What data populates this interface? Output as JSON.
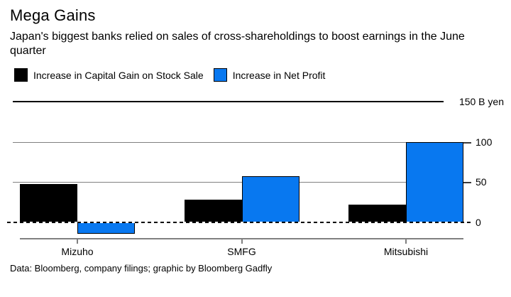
{
  "chart_data": {
    "type": "bar",
    "title": "Mega Gains",
    "subtitle": "Japan's biggest banks relied on sales of cross-shareholdings to boost earnings in the June quarter",
    "categories": [
      "Mizuho",
      "SMFG",
      "Mitsubishi"
    ],
    "series": [
      {
        "name": "Increase in Capital Gain on Stock Sale",
        "color": "#000000",
        "values": [
          48,
          28,
          22
        ]
      },
      {
        "name": "Increase in Net Profit",
        "color": "#0878f0",
        "values": [
          -14,
          57,
          100
        ]
      }
    ],
    "unit": "B yen",
    "ylim": [
      -20,
      150
    ],
    "yticks": [
      {
        "value": 0,
        "label": "0",
        "style": "zero-dashed"
      },
      {
        "value": 50,
        "label": "50",
        "style": "gray"
      },
      {
        "value": 100,
        "label": "100",
        "style": "gray"
      },
      {
        "value": 150,
        "label": "150 B yen",
        "style": "dark"
      }
    ],
    "grid": true,
    "legend_position": "top-left",
    "colors": {
      "accent_blue": "#0878f0",
      "bar_black": "#000000",
      "axis_gray": "#808080"
    }
  },
  "source": "Data: Bloomberg, company filings; graphic by Bloomberg Gadfly"
}
